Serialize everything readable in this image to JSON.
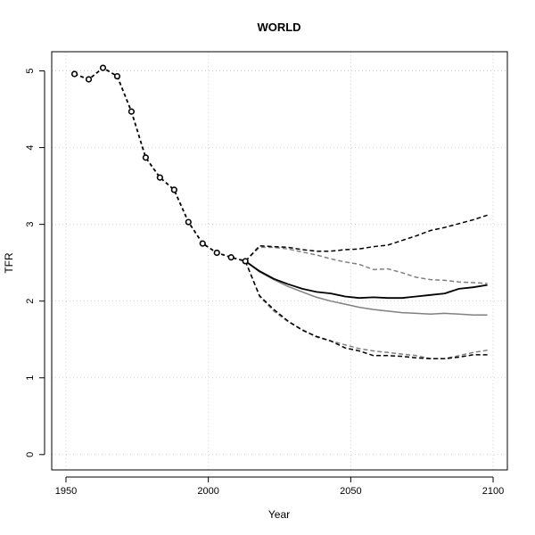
{
  "chart_data": {
    "type": "line",
    "title": "WORLD",
    "xlabel": "Year",
    "ylabel": "TFR",
    "xlim": [
      1945,
      2105
    ],
    "ylim": [
      -0.2,
      5.25
    ],
    "x_ticks": [
      1950,
      2000,
      2050,
      2100
    ],
    "y_ticks": [
      0,
      1,
      2,
      3,
      4,
      5
    ],
    "grid": true,
    "series": [
      {
        "style": "observed",
        "color": "#000000",
        "x": [
          1953,
          1958,
          1963,
          1968,
          1973,
          1978,
          1983,
          1988,
          1993,
          1998,
          2003,
          2008,
          2013
        ],
        "y": [
          4.96,
          4.89,
          5.04,
          4.93,
          4.47,
          3.87,
          3.61,
          3.45,
          3.03,
          2.75,
          2.63,
          2.57,
          2.52
        ]
      },
      {
        "style": "median",
        "color": "#000000",
        "x": [
          2013,
          2018,
          2023,
          2028,
          2033,
          2038,
          2043,
          2048,
          2053,
          2058,
          2063,
          2068,
          2073,
          2078,
          2083,
          2088,
          2093,
          2098
        ],
        "y": [
          2.52,
          2.39,
          2.29,
          2.22,
          2.16,
          2.12,
          2.1,
          2.06,
          2.04,
          2.05,
          2.04,
          2.04,
          2.06,
          2.08,
          2.1,
          2.16,
          2.18,
          2.21
        ]
      },
      {
        "style": "upper_bound",
        "color": "#000000",
        "x": [
          2013,
          2018,
          2023,
          2028,
          2033,
          2038,
          2043,
          2048,
          2053,
          2058,
          2063,
          2068,
          2073,
          2078,
          2083,
          2088,
          2093,
          2098
        ],
        "y": [
          2.52,
          2.72,
          2.71,
          2.7,
          2.67,
          2.65,
          2.65,
          2.67,
          2.68,
          2.71,
          2.73,
          2.79,
          2.85,
          2.92,
          2.96,
          3.01,
          3.06,
          3.12
        ]
      },
      {
        "style": "lower_bound",
        "color": "#000000",
        "x": [
          2013,
          2018,
          2023,
          2028,
          2033,
          2038,
          2043,
          2048,
          2053,
          2058,
          2063,
          2068,
          2073,
          2078,
          2083,
          2088,
          2093,
          2098
        ],
        "y": [
          2.52,
          2.07,
          1.89,
          1.74,
          1.62,
          1.54,
          1.48,
          1.39,
          1.35,
          1.29,
          1.29,
          1.28,
          1.26,
          1.25,
          1.25,
          1.27,
          1.3,
          1.3
        ]
      },
      {
        "style": "median_alt",
        "color": "#808080",
        "x": [
          2013,
          2018,
          2023,
          2028,
          2033,
          2038,
          2043,
          2048,
          2053,
          2058,
          2063,
          2068,
          2073,
          2078,
          2083,
          2088,
          2093,
          2098
        ],
        "y": [
          2.52,
          2.38,
          2.28,
          2.19,
          2.12,
          2.05,
          2.0,
          1.96,
          1.92,
          1.89,
          1.87,
          1.85,
          1.84,
          1.83,
          1.84,
          1.83,
          1.82,
          1.82
        ]
      },
      {
        "style": "upper_alt",
        "color": "#808080",
        "x": [
          2013,
          2018,
          2023,
          2028,
          2033,
          2038,
          2043,
          2048,
          2053,
          2058,
          2063,
          2068,
          2073,
          2078,
          2083,
          2088,
          2093,
          2098
        ],
        "y": [
          2.52,
          2.7,
          2.7,
          2.68,
          2.64,
          2.6,
          2.55,
          2.51,
          2.48,
          2.41,
          2.42,
          2.37,
          2.31,
          2.28,
          2.27,
          2.25,
          2.24,
          2.23
        ]
      },
      {
        "style": "lower_alt",
        "color": "#808080",
        "x": [
          2013,
          2018,
          2023,
          2028,
          2033,
          2038,
          2043,
          2048,
          2053,
          2058,
          2063,
          2068,
          2073,
          2078,
          2083,
          2088,
          2093,
          2098
        ],
        "y": [
          2.52,
          2.06,
          1.87,
          1.73,
          1.63,
          1.53,
          1.48,
          1.43,
          1.38,
          1.35,
          1.33,
          1.31,
          1.29,
          1.25,
          1.25,
          1.29,
          1.33,
          1.36
        ]
      }
    ]
  }
}
